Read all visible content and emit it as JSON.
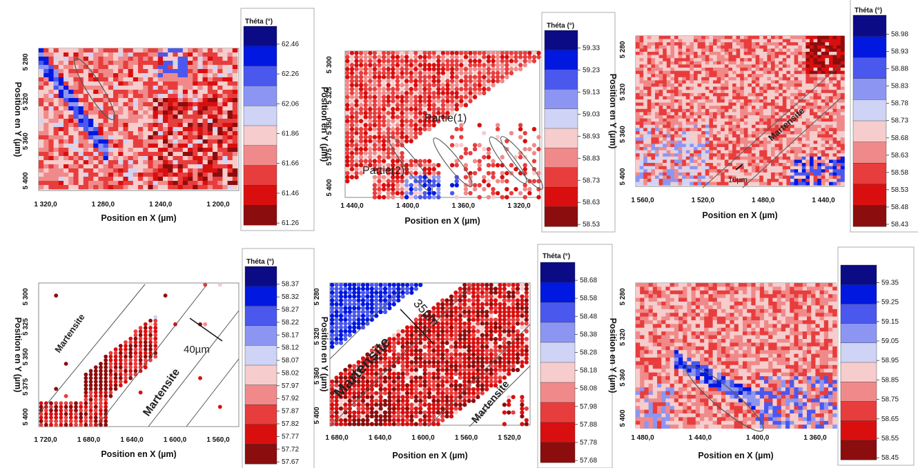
{
  "colors": {
    "scale": [
      "#0b0b86",
      "#0018e0",
      "#4a58ee",
      "#8c96f2",
      "#cfd4f6",
      "#f6cccc",
      "#f08a8a",
      "#e83d3d",
      "#d90f0f",
      "#8c0d0d"
    ],
    "annotation_line": "#555555"
  },
  "chart_data": [
    {
      "type": "heatmap",
      "xlabel": "Position en X (µm)",
      "ylabel": "Position en Y (µm)",
      "xticks": [
        "1 320,0",
        "1 280,0",
        "1 240,0",
        "1 200,0"
      ],
      "yticks": [
        "5 280",
        "5 320",
        "5 360",
        "5 400"
      ],
      "colorbar": {
        "title": "Théta (°)",
        "ticks": [
          "62.46",
          "62.26",
          "62.06",
          "61.86",
          "61.66",
          "61.46",
          "61.26"
        ]
      },
      "annotations": []
    },
    {
      "type": "heatmap",
      "xlabel": "Position en X (µm)",
      "ylabel": "Position en Y (µm)",
      "xticks": [
        "1 440,0",
        "1 400,0",
        "1 360,0",
        "1 320,0"
      ],
      "yticks": [
        "5 300",
        "5 325",
        "5 350",
        "5 375",
        "5 400"
      ],
      "colorbar": {
        "title": "Théta (°)",
        "ticks": [
          "59.33",
          "59.23",
          "59.13",
          "59.03",
          "58.93",
          "58.83",
          "58.73",
          "58.63",
          "58.53"
        ]
      },
      "annotations": [
        "Partie(1)",
        "Partie(2)"
      ]
    },
    {
      "type": "heatmap",
      "xlabel": "Position en X (µm)",
      "ylabel": "Position en Y (µm)",
      "xticks": [
        "1 560,0",
        "1 520,0",
        "1 480,0",
        "1 440,0"
      ],
      "yticks": [
        "5 280",
        "5 320",
        "5 360",
        "5 400"
      ],
      "colorbar": {
        "title": "Théta (°)",
        "ticks": [
          "58.98",
          "58.93",
          "58.88",
          "58.83",
          "58.78",
          "58.73",
          "58.68",
          "58.63",
          "58.58",
          "58.53",
          "58.48",
          "58.43"
        ]
      },
      "annotations": [
        "Martensite",
        "10µm"
      ]
    },
    {
      "type": "heatmap",
      "xlabel": "Position en X (µm)",
      "ylabel": "Position en Y (µm)",
      "xticks": [
        "1 720,0",
        "1 680,0",
        "1 640,0",
        "1 600,0",
        "1 560,0"
      ],
      "yticks": [
        "5 300",
        "5 325",
        "5 350",
        "5 375",
        "5 400"
      ],
      "colorbar": {
        "title": "Théta (°)",
        "ticks": [
          "58.37",
          "58.32",
          "58.27",
          "58.22",
          "58.17",
          "58.12",
          "58.07",
          "58.02",
          "57.97",
          "57.92",
          "57.87",
          "57.82",
          "57.77",
          "57.72",
          "57.67"
        ]
      },
      "annotations": [
        "Martensite",
        "Martensite",
        "40µm"
      ]
    },
    {
      "type": "heatmap",
      "xlabel": "Position en X (µm)",
      "ylabel": "Position en Y (µm)",
      "xticks": [
        "1 680,0",
        "1 640,0",
        "1 600,0",
        "1 560,0",
        "1 520,0"
      ],
      "yticks": [
        "5 280",
        "5 320",
        "5 360",
        "5 400"
      ],
      "colorbar": {
        "title": "Théta (°)",
        "ticks": [
          "58.68",
          "58.58",
          "58.48",
          "58.38",
          "58.28",
          "58.18",
          "58.08",
          "57.98",
          "57.88",
          "57.78",
          "57.68"
        ]
      },
      "annotations": [
        "Martensite",
        "Martensite",
        "35µm"
      ]
    },
    {
      "type": "heatmap",
      "xlabel": "Position en X (µm)",
      "ylabel": "Position en Y (µm)",
      "xticks": [
        "1 480,0",
        "1 440,0",
        "1 400,0",
        "1 360,0"
      ],
      "yticks": [
        "5 280",
        "5 320",
        "5 360",
        "5 400"
      ],
      "colorbar": {
        "title": "",
        "ticks": [
          "59.35",
          "59.25",
          "59.15",
          "59.05",
          "58.95",
          "58.85",
          "58.75",
          "58.65",
          "58.55",
          "58.45"
        ]
      },
      "annotations": []
    }
  ]
}
